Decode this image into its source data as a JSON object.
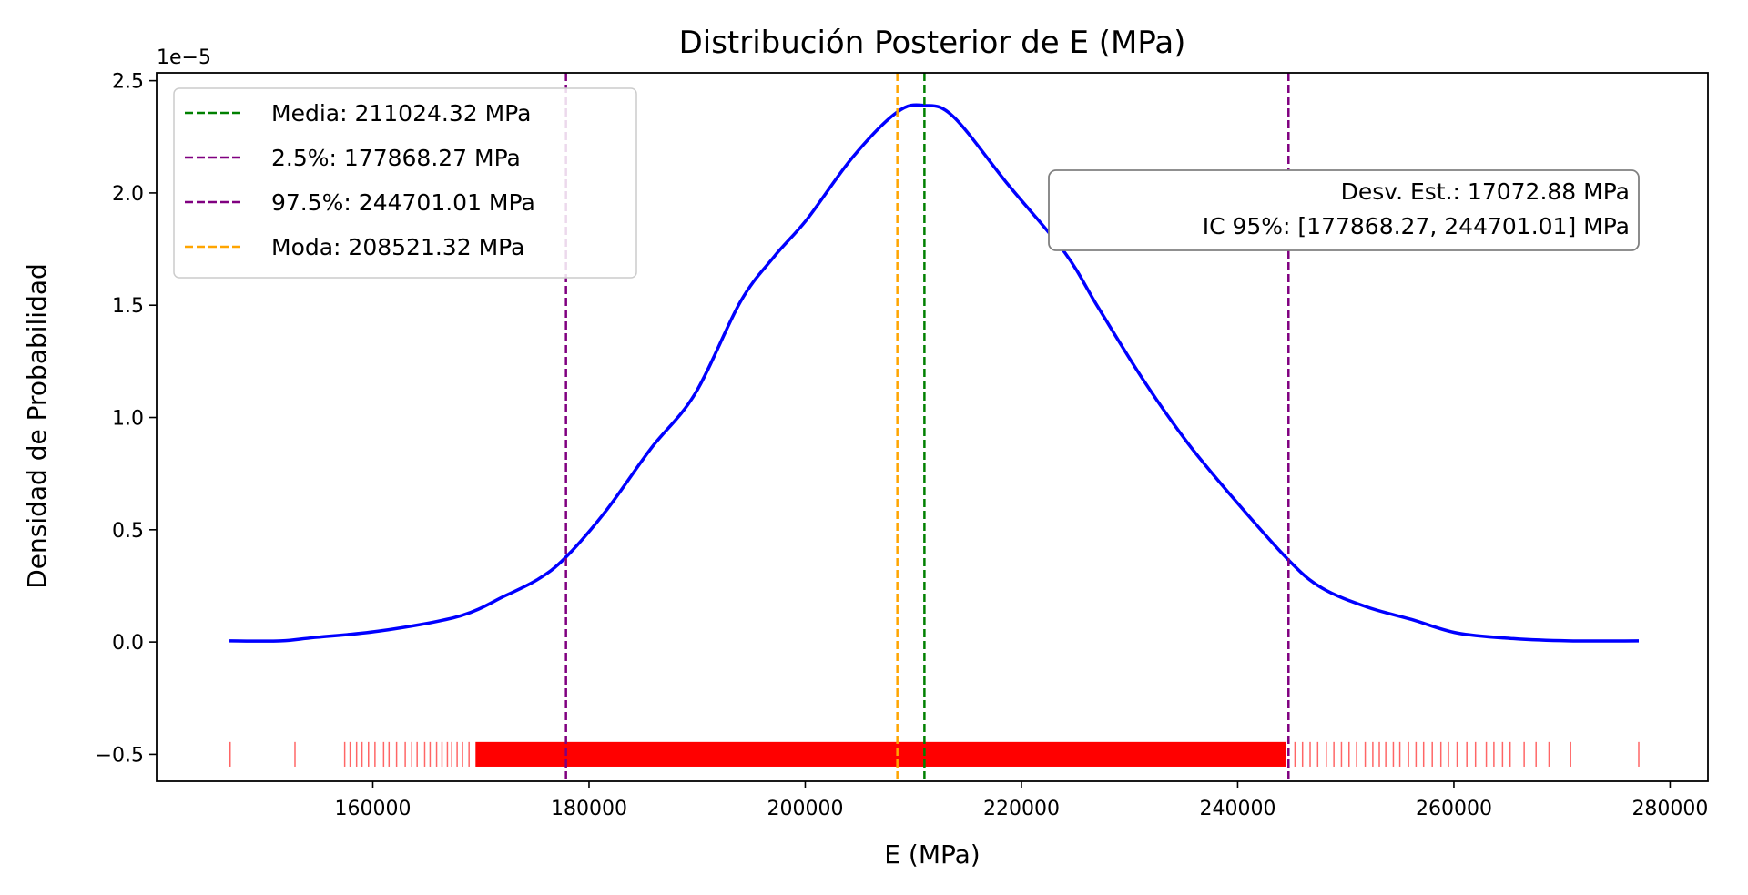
{
  "chart_data": {
    "type": "line",
    "title": "Distribución Posterior de E (MPa)",
    "xlabel": "E (MPa)",
    "ylabel": "Densidad de Probabilidad",
    "y_offset_label": "1e−5",
    "xlim": [
      140000,
      283500
    ],
    "ylim": [
      -0.62,
      2.535
    ],
    "y_scale_factor": 1e-05,
    "grid": false,
    "x_ticks": [
      160000,
      180000,
      200000,
      220000,
      240000,
      260000,
      280000
    ],
    "x_tick_labels": [
      "160000",
      "180000",
      "200000",
      "220000",
      "240000",
      "260000",
      "280000"
    ],
    "y_ticks": [
      -0.5,
      0.0,
      0.5,
      1.0,
      1.5,
      2.0,
      2.5
    ],
    "y_tick_labels": [
      "−0.5",
      "0.0",
      "0.5",
      "1.0",
      "1.5",
      "2.0",
      "2.5"
    ],
    "series": [
      {
        "kind": "kde",
        "color": "#0000ff",
        "x": [
          146740,
          151500,
          154600,
          160800,
          168000,
          172200,
          175300,
          177800,
          181500,
          185700,
          189800,
          194000,
          197100,
          200200,
          204400,
          208500,
          211000,
          213700,
          218800,
          224000,
          227100,
          231300,
          235400,
          239600,
          244700,
          247800,
          252000,
          256100,
          260300,
          265500,
          270600,
          277100
        ],
        "y": [
          0.005,
          0.005,
          0.02,
          0.05,
          0.115,
          0.205,
          0.28,
          0.375,
          0.58,
          0.86,
          1.105,
          1.515,
          1.715,
          1.885,
          2.16,
          2.36,
          2.39,
          2.34,
          2.035,
          1.735,
          1.49,
          1.165,
          0.885,
          0.64,
          0.365,
          0.24,
          0.155,
          0.1,
          0.04,
          0.015,
          0.005,
          0.005
        ]
      }
    ],
    "rug": {
      "color": "#ff0000",
      "y": -0.5,
      "dense_range": [
        169500,
        244500
      ],
      "samples": [
        146800,
        152800,
        157400,
        157900,
        158500,
        159000,
        159600,
        160200,
        161000,
        161500,
        162200,
        163000,
        163600,
        164100,
        164800,
        165300,
        165900,
        166400,
        166900,
        167300,
        167800,
        168300,
        168900,
        245300,
        246000,
        246700,
        247400,
        248200,
        248900,
        249600,
        250300,
        251000,
        251800,
        252500,
        253100,
        253700,
        254400,
        255000,
        255800,
        256500,
        257200,
        258000,
        258800,
        259500,
        260300,
        261200,
        262000,
        263000,
        263700,
        264500,
        265200,
        266500,
        267600,
        268800,
        270800,
        277100
      ]
    },
    "vlines": [
      {
        "label": "Media: 211024.32 MPa",
        "x": 211024.32,
        "color": "#008000"
      },
      {
        "label": "2.5%: 177868.27 MPa",
        "x": 177868.27,
        "color": "#800080"
      },
      {
        "label": "97.5%: 244701.01 MPa",
        "x": 244701.01,
        "color": "#800080"
      },
      {
        "label": "Moda: 208521.32 MPa",
        "x": 208521.32,
        "color": "#ffa500"
      }
    ],
    "legend_placement": "top-left",
    "annotation": {
      "lines": [
        "Desv. Est.: 17072.88 MPa",
        "IC 95%: [177868.27, 244701.01] MPa"
      ],
      "placement": "top-right"
    }
  }
}
